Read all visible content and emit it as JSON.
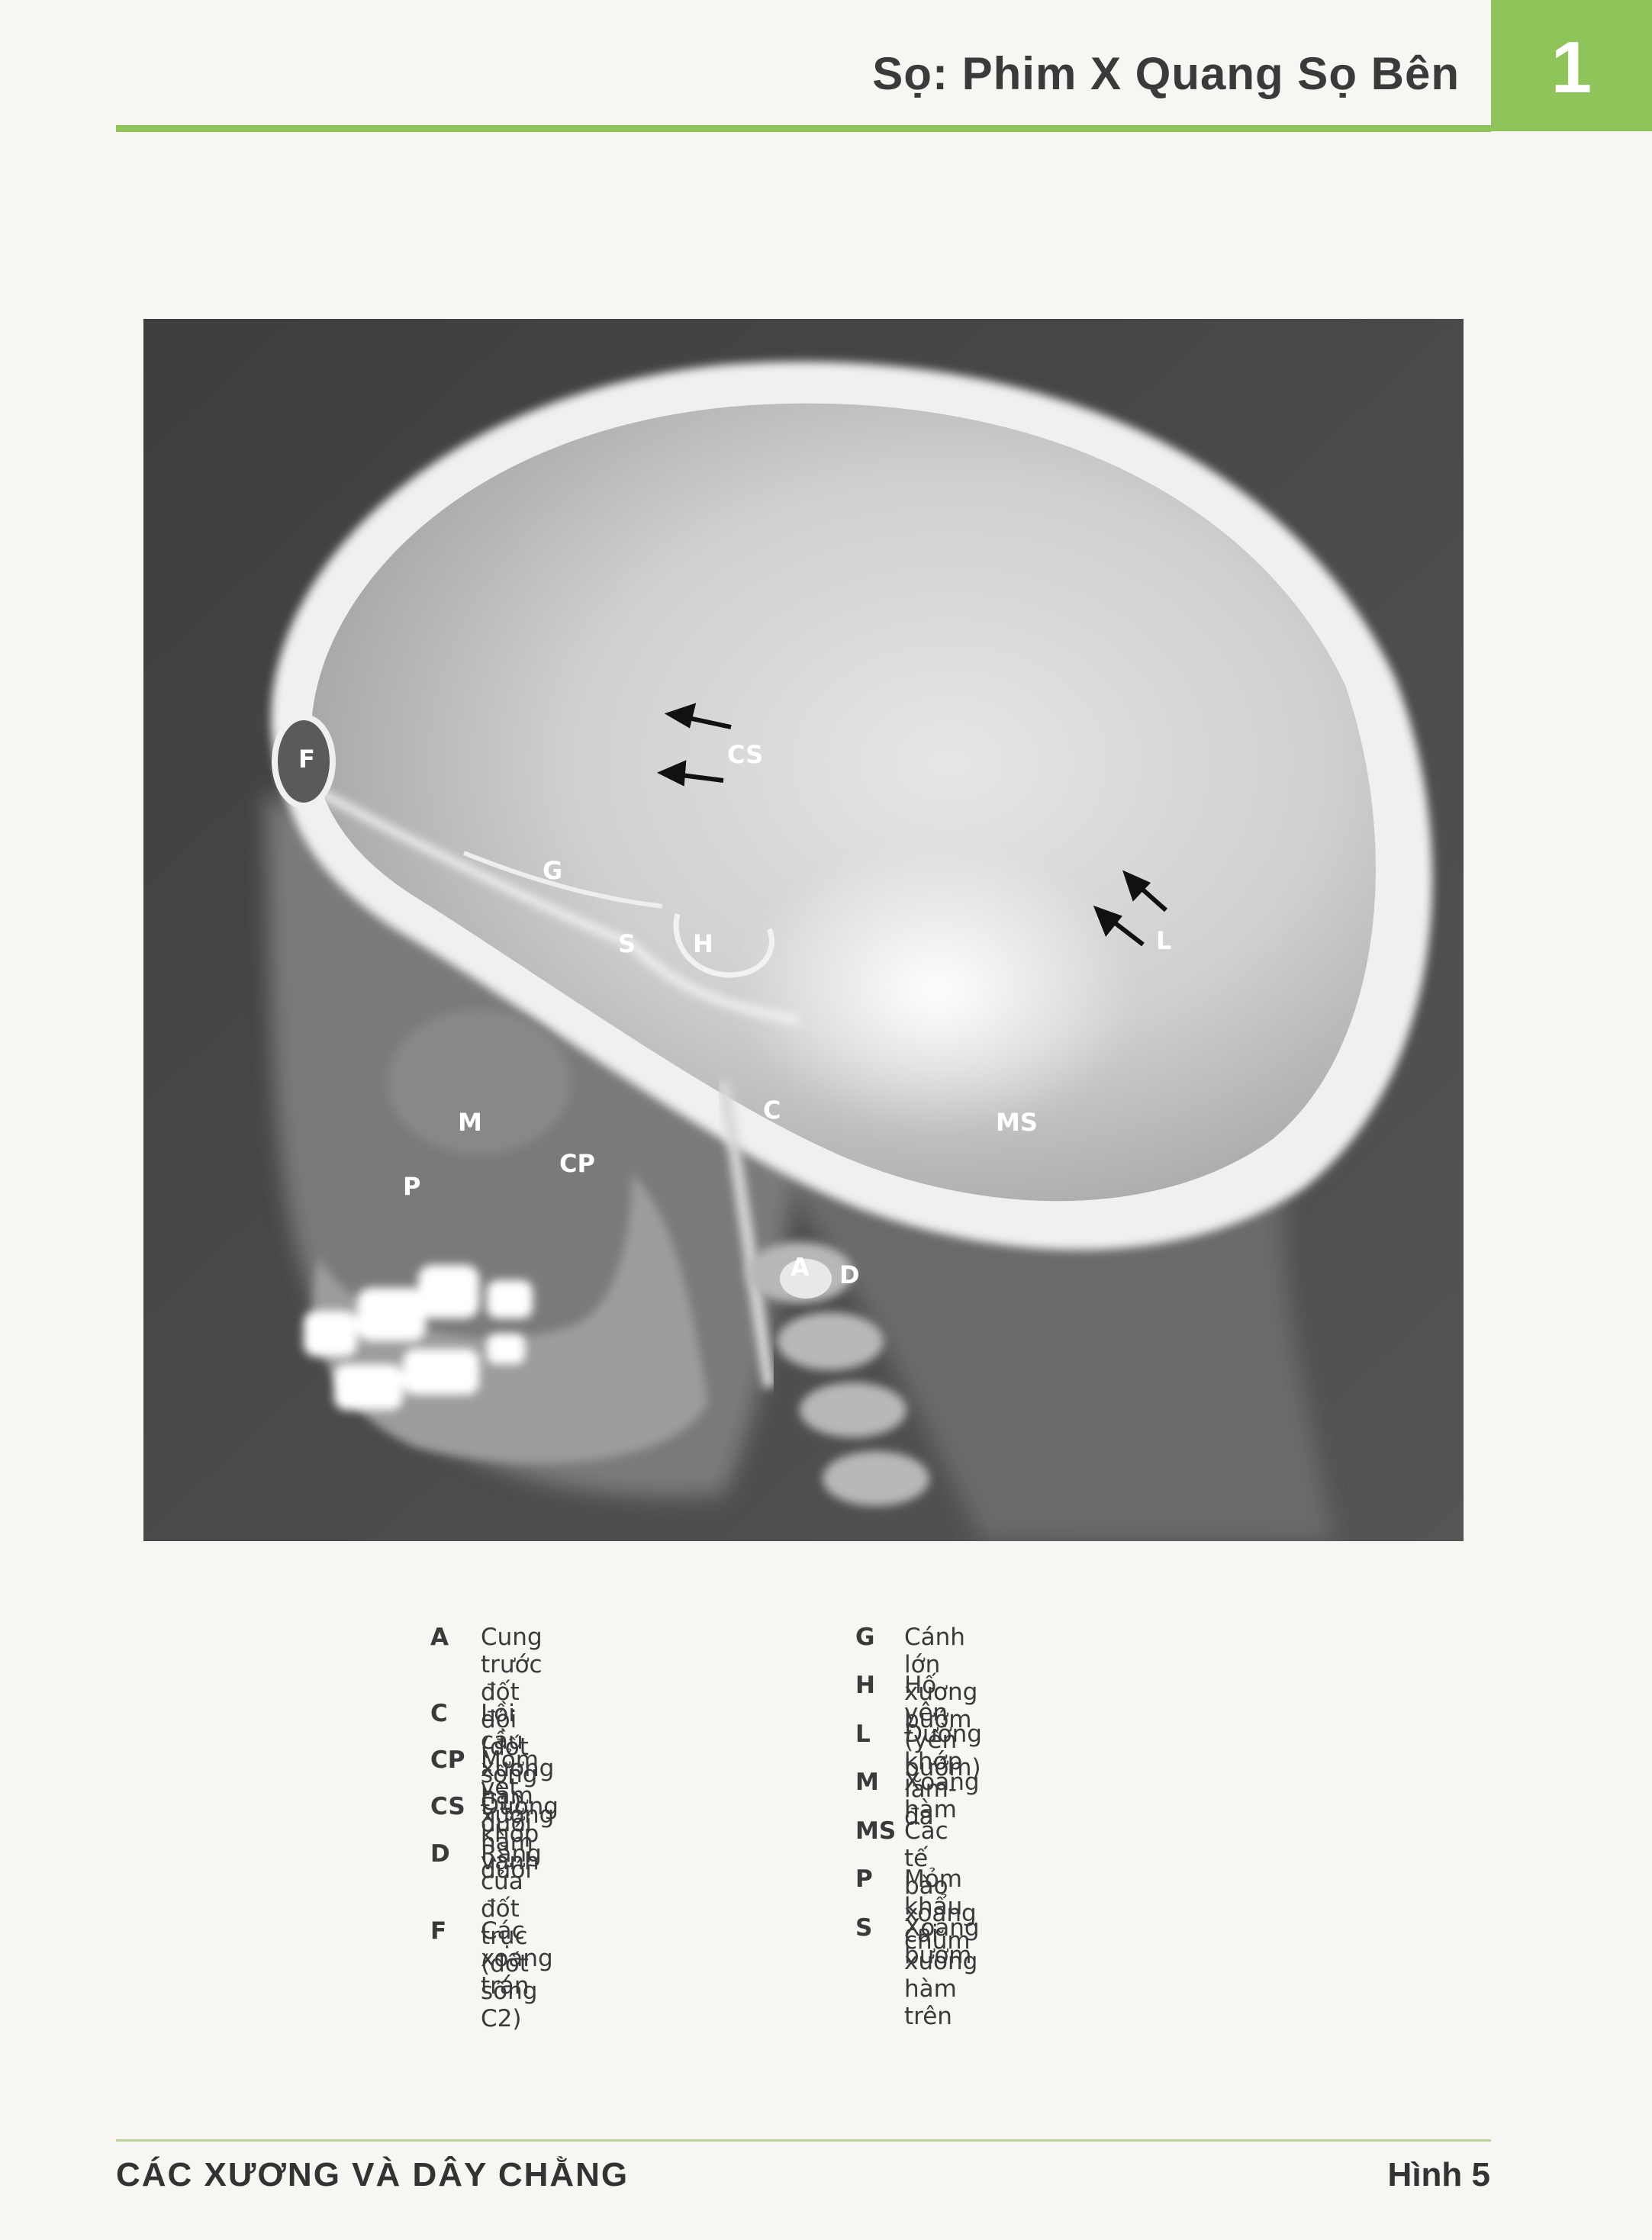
{
  "header": {
    "title": "Sọ: Phim X Quang Sọ Bên",
    "chapter_number": "1"
  },
  "figure": {
    "labels": {
      "F": "F",
      "CS": "CS",
      "G": "G",
      "S": "S",
      "H": "H",
      "L": "L",
      "C": "C",
      "M": "M",
      "MS": "MS",
      "CP": "CP",
      "P": "P",
      "A": "A",
      "D": "D"
    }
  },
  "legend": {
    "left": [
      {
        "code": "A",
        "text": "Cung trước đốt đội\n(đốt sống C1)"
      },
      {
        "code": "C",
        "text": "Lồi cầu xương hàm dưới"
      },
      {
        "code": "CP",
        "text": "Mỏm vẹt xương hàm dưới"
      },
      {
        "code": "CS",
        "text": "Đường khớp vành"
      },
      {
        "code": "D",
        "text": "Răng của đốt trục\n(đốt sống C2)"
      },
      {
        "code": "F",
        "text": "Các xoang trán"
      }
    ],
    "right": [
      {
        "code": "G",
        "text": "Cánh lớn xương bướm"
      },
      {
        "code": "H",
        "text": "Hố yên (yên bướm)"
      },
      {
        "code": "L",
        "text": "Đường khớp lăm-đa"
      },
      {
        "code": "M",
        "text": "Xoang hàm"
      },
      {
        "code": "MS",
        "text": "Các tế bào xoang chũm"
      },
      {
        "code": "P",
        "text": "Mỏm khẩu cái xương hàm trên"
      },
      {
        "code": "S",
        "text": "Xoang bướm"
      }
    ]
  },
  "footer": {
    "section": "CÁC XƯƠNG VÀ DÂY CHẰNG",
    "figure_ref": "Hình 5"
  },
  "colors": {
    "accent_green": "#8fc45a",
    "xray_background": "#474747"
  }
}
